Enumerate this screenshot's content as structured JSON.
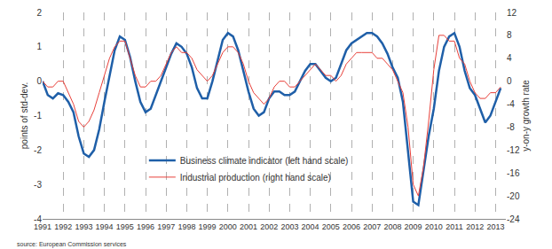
{
  "chart_data": {
    "type": "line",
    "source": "source: European Commission services",
    "y_label": "points of std-dev.",
    "y2_label": "y-on-y growth rate",
    "x": [
      1991,
      1991.25,
      1991.5,
      1991.75,
      1992,
      1992.25,
      1992.5,
      1992.75,
      1993,
      1993.25,
      1993.5,
      1993.75,
      1994,
      1994.25,
      1994.5,
      1994.75,
      1995,
      1995.25,
      1995.5,
      1995.75,
      1996,
      1996.25,
      1996.5,
      1996.75,
      1997,
      1997.25,
      1997.5,
      1997.75,
      1998,
      1998.25,
      1998.5,
      1998.75,
      1999,
      1999.25,
      1999.5,
      1999.75,
      2000,
      2000.25,
      2000.5,
      2000.75,
      2001,
      2001.25,
      2001.5,
      2001.75,
      2002,
      2002.25,
      2002.5,
      2002.75,
      2003,
      2003.25,
      2003.5,
      2003.75,
      2004,
      2004.25,
      2004.5,
      2004.75,
      2005,
      2005.25,
      2005.5,
      2005.75,
      2006,
      2006.25,
      2006.5,
      2006.75,
      2007,
      2007.25,
      2007.5,
      2007.75,
      2008,
      2008.25,
      2008.5,
      2008.75,
      2009,
      2009.25,
      2009.5,
      2009.75,
      2010,
      2010.25,
      2010.5,
      2010.75,
      2011,
      2011.25,
      2011.5,
      2011.75,
      2012,
      2012.25,
      2012.5,
      2012.75,
      2013,
      2013.25
    ],
    "series": [
      {
        "name": "Business climate indicator (left hand scale)",
        "color": "#1f5fa8",
        "axis": "y",
        "values": [
          0,
          -0.4,
          -0.5,
          -0.35,
          -0.4,
          -0.6,
          -0.9,
          -1.6,
          -2.1,
          -2.2,
          -2.0,
          -1.4,
          -0.6,
          0.2,
          0.9,
          1.3,
          1.2,
          0.7,
          0.0,
          -0.6,
          -0.9,
          -0.8,
          -0.4,
          0.0,
          0.4,
          0.8,
          1.1,
          1.0,
          0.8,
          0.4,
          -0.2,
          -0.5,
          -0.5,
          0.0,
          0.6,
          1.2,
          1.4,
          1.3,
          0.9,
          0.3,
          -0.3,
          -0.8,
          -1.0,
          -0.9,
          -0.5,
          -0.3,
          -0.3,
          -0.4,
          -0.4,
          -0.3,
          0.0,
          0.3,
          0.5,
          0.5,
          0.3,
          0.1,
          0.0,
          0.1,
          0.5,
          0.9,
          1.1,
          1.2,
          1.3,
          1.4,
          1.4,
          1.3,
          1.1,
          0.8,
          0.4,
          0.1,
          -0.6,
          -2.0,
          -3.5,
          -3.6,
          -2.6,
          -1.6,
          -0.8,
          0.3,
          1.0,
          1.3,
          1.4,
          1.0,
          0.3,
          -0.2,
          -0.4,
          -0.8,
          -1.2,
          -1.0,
          -0.6,
          -0.2
        ]
      },
      {
        "name": "Industrial production (right hand scale)",
        "color": "#e8403a",
        "axis": "y2",
        "values": [
          0,
          -1,
          -1,
          0,
          0,
          -2,
          -4,
          -7,
          -8,
          -7,
          -5,
          -2,
          1,
          4,
          6,
          7,
          7,
          4,
          1,
          -1,
          -1,
          0,
          0,
          1,
          3,
          5,
          6,
          5,
          5,
          4,
          2,
          1,
          0,
          1,
          3,
          5,
          6,
          6,
          5,
          3,
          0,
          -2,
          -3,
          -4,
          -3,
          -1,
          0,
          0,
          -1,
          -1,
          0,
          1,
          2,
          3,
          2,
          1,
          1,
          0,
          1,
          3,
          4,
          5,
          5,
          5,
          5,
          4,
          4,
          3,
          2,
          0,
          -2,
          -8,
          -18,
          -20,
          -15,
          -7,
          2,
          8,
          8,
          7,
          7,
          4,
          3,
          0,
          -2,
          -3,
          -3,
          -2,
          -2,
          -1
        ]
      }
    ],
    "xlim": [
      1991,
      2013.5
    ],
    "xticks": [
      1991,
      1992,
      1993,
      1994,
      1995,
      1996,
      1997,
      1998,
      1999,
      2000,
      2001,
      2002,
      2003,
      2004,
      2005,
      2006,
      2007,
      2008,
      2009,
      2010,
      2011,
      2012,
      2013
    ],
    "ylim": [
      -4,
      2
    ],
    "yticks": [
      -4,
      -3,
      -2,
      -1,
      0,
      1,
      2
    ],
    "y2lim": [
      -24,
      12
    ],
    "y2ticks": [
      -24,
      -20,
      -16,
      -12,
      -8,
      -4,
      0,
      4,
      8,
      12
    ],
    "grid": true,
    "legend": "lower center"
  }
}
